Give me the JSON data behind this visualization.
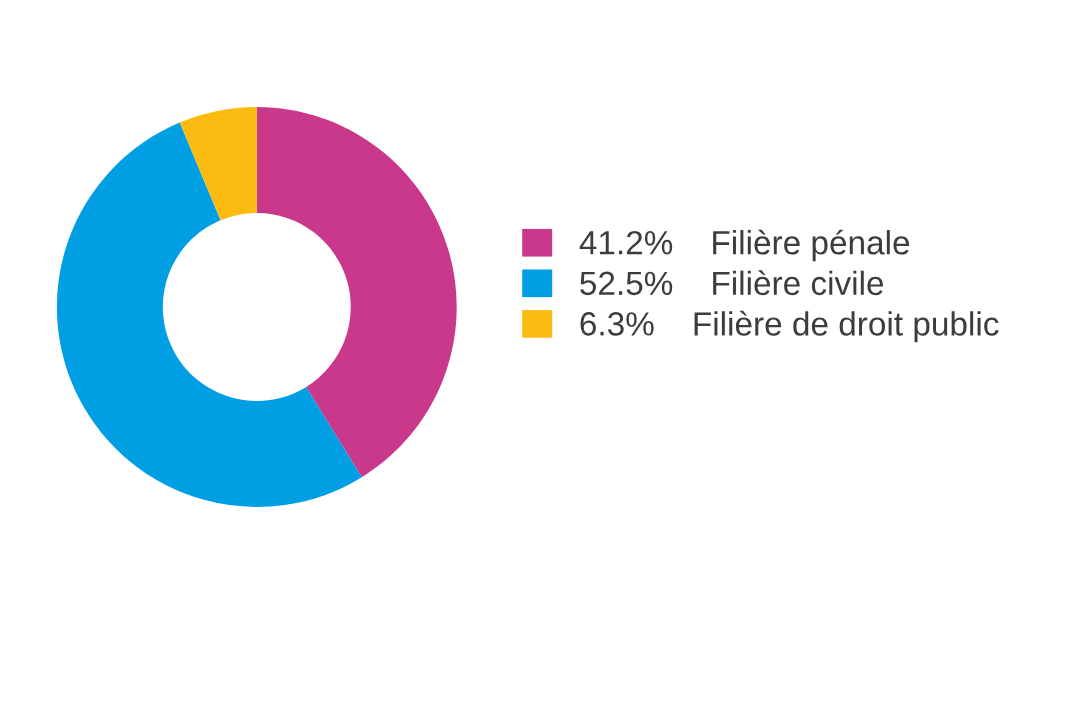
{
  "chart_data": {
    "type": "donut",
    "categories": [
      "Filière pénale",
      "Filière civile",
      "Filière de droit public"
    ],
    "values": [
      41.2,
      52.5,
      6.3
    ],
    "value_labels": [
      "41.2%",
      "52.5%",
      "6.3%"
    ],
    "colors": [
      "#c9388a",
      "#009fe3",
      "#fbbb10"
    ],
    "legend": "right"
  }
}
